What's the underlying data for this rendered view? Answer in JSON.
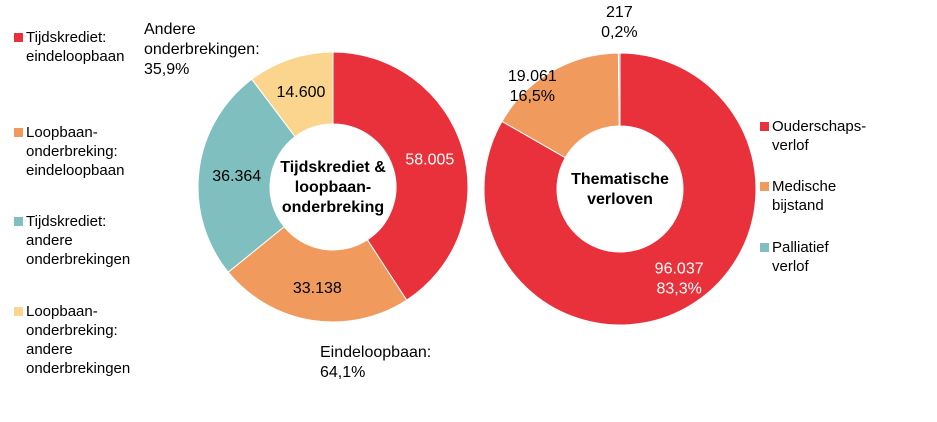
{
  "chart_data": [
    {
      "type": "donut",
      "title": "Tijdskrediet & loopbaan-onderbreking",
      "center_lines": [
        "Tijdskrediet &",
        "loopbaan-",
        "onderbreking"
      ],
      "slices": [
        {
          "name": "Tijdskrediet: eindeloopbaan",
          "value": 58005,
          "label": "58.005",
          "color": "#e8313b",
          "label_color": "#ffffff"
        },
        {
          "name": "Loopbaan-onderbreking: eindeloopbaan",
          "value": 33138,
          "label": "33.138",
          "color": "#f09a5e",
          "label_color": "#000000"
        },
        {
          "name": "Tijdskrediet: andere onderbrekingen",
          "value": 36364,
          "label": "36.364",
          "color": "#7fbfbf",
          "label_color": "#000000"
        },
        {
          "name": "Loopbaan-onderbreking: andere onderbrekingen",
          "value": 14600,
          "label": "14.600",
          "color": "#fbd58e",
          "label_color": "#000000"
        }
      ],
      "legend": [
        {
          "text": "Tijdskrediet:\neindeloopbaan",
          "color": "#e8313b"
        },
        {
          "text": "Loopbaan-\nonderbreking:\neindeloopbaan",
          "color": "#f09a5e"
        },
        {
          "text": "Tijdskrediet:\nandere\nonderbrekingen",
          "color": "#7fbfbf"
        },
        {
          "text": "Loopbaan-\nonderbreking:\nandere\nonderbrekingen",
          "color": "#fbd58e"
        }
      ],
      "annotations": {
        "andere": "Andere\nonderbrekingen:\n35,9%",
        "eindeloopbaan": "Eindeloopbaan:\n64,1%"
      }
    },
    {
      "type": "donut",
      "title": "Thematische verloven",
      "center_lines": [
        "Thematische",
        "verloven"
      ],
      "slices": [
        {
          "name": "Ouderschapsverlof",
          "value": 96037,
          "label": "96.037",
          "percent": "83,3%",
          "color": "#e8313b",
          "label_color": "#ffffff"
        },
        {
          "name": "Medische bijstand",
          "value": 19061,
          "label": "19.061",
          "percent": "16,5%",
          "color": "#f09a5e",
          "label_color": "#000000"
        },
        {
          "name": "Palliatief verlof",
          "value": 217,
          "label": "217",
          "percent": "0,2%",
          "color": "#7fbfbf",
          "label_color": "#000000"
        }
      ],
      "legend": [
        {
          "text": "Ouderschaps-\nverlof",
          "color": "#e8313b"
        },
        {
          "text": "Medische bijstand",
          "color": "#f09a5e"
        },
        {
          "text": "Palliatief verlof",
          "color": "#7fbfbf"
        }
      ]
    }
  ]
}
